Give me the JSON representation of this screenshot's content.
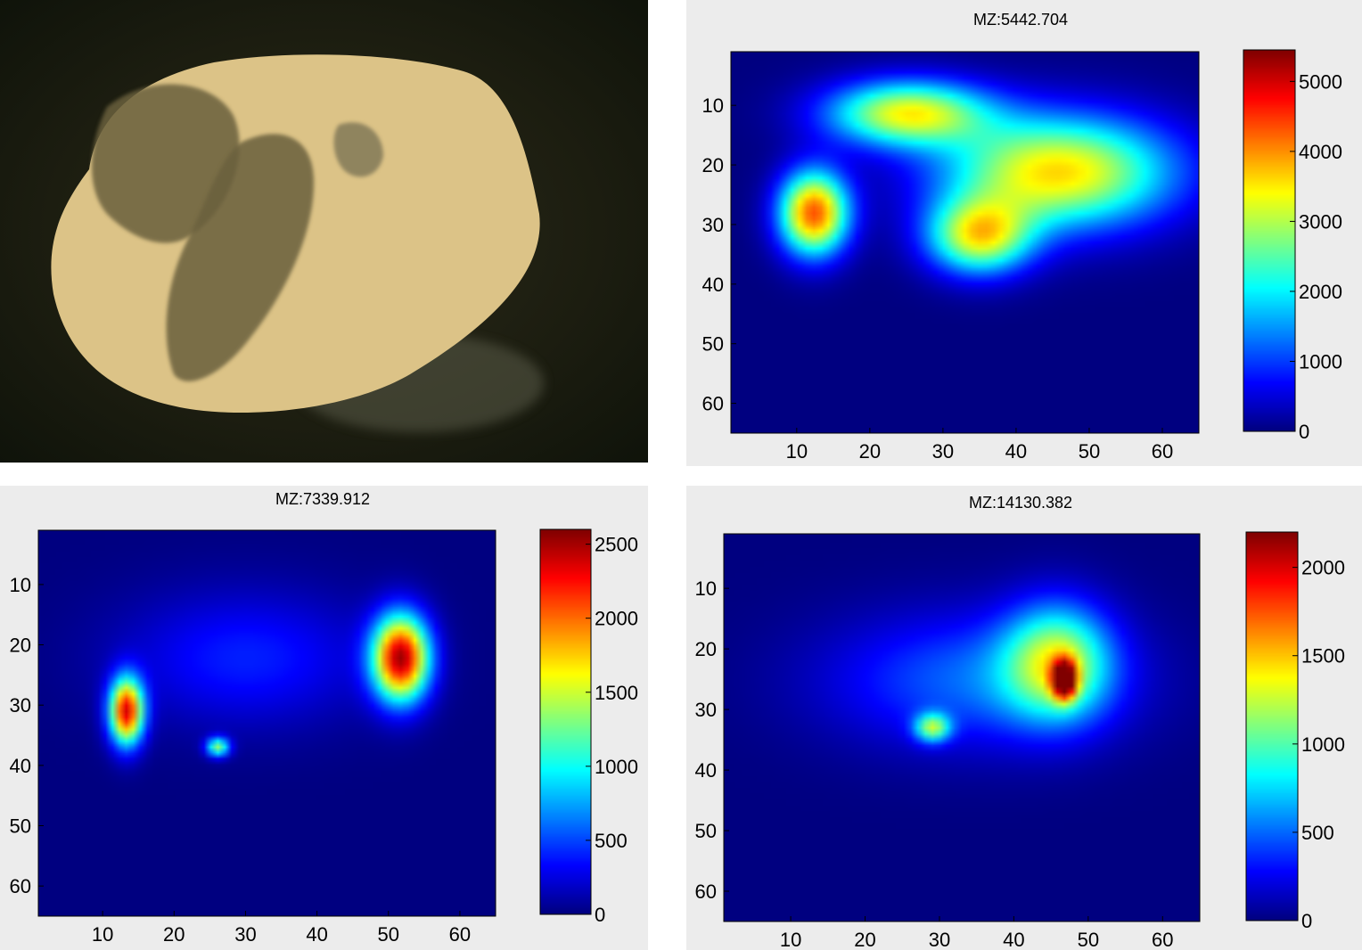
{
  "chart_data": [
    {
      "type": "heatmap",
      "title": "MZ:5442.704",
      "xticks": [
        "10",
        "20",
        "30",
        "40",
        "50",
        "60"
      ],
      "yticks": [
        "10",
        "20",
        "30",
        "40",
        "50",
        "60"
      ],
      "xlim": [
        1,
        65
      ],
      "ylim": [
        1,
        65
      ],
      "colorbar": {
        "ticks": [
          "0",
          "1000",
          "2000",
          "3000",
          "4000",
          "5000"
        ],
        "min": 0,
        "max": 5450
      },
      "colormap": "jet",
      "background_value": 0,
      "hotspots": [
        {
          "center": [
            46,
            21
          ],
          "radius": [
            20,
            12
          ],
          "peak": 3600
        },
        {
          "center": [
            25,
            11
          ],
          "radius": [
            14,
            7
          ],
          "peak": 3300
        },
        {
          "center": [
            12,
            28
          ],
          "radius": [
            6,
            9
          ],
          "peak": 4300
        },
        {
          "center": [
            35,
            32
          ],
          "radius": [
            9,
            8
          ],
          "peak": 3200
        }
      ]
    },
    {
      "type": "heatmap",
      "title": "MZ:7339.912",
      "xticks": [
        "10",
        "20",
        "30",
        "40",
        "50",
        "60"
      ],
      "yticks": [
        "10",
        "20",
        "30",
        "40",
        "50",
        "60"
      ],
      "xlim": [
        1,
        65
      ],
      "ylim": [
        1,
        65
      ],
      "colorbar": {
        "ticks": [
          "0",
          "500",
          "1000",
          "1500",
          "2000",
          "2500"
        ],
        "min": 0,
        "max": 2600
      },
      "colormap": "jet",
      "background_value": 0,
      "hotspots": [
        {
          "center": [
            13,
            31
          ],
          "radius": [
            3,
            7
          ],
          "peak": 2300
        },
        {
          "center": [
            52,
            22
          ],
          "radius": [
            5,
            9
          ],
          "peak": 2450
        },
        {
          "center": [
            30,
            22
          ],
          "radius": [
            22,
            14
          ],
          "peak": 400
        },
        {
          "center": [
            26,
            37
          ],
          "radius": [
            2,
            2
          ],
          "peak": 1300
        }
      ]
    },
    {
      "type": "heatmap",
      "title": "MZ:14130.382",
      "xticks": [
        "10",
        "20",
        "30",
        "40",
        "50",
        "60"
      ],
      "yticks": [
        "10",
        "20",
        "30",
        "40",
        "50",
        "60"
      ],
      "xlim": [
        1,
        65
      ],
      "ylim": [
        1,
        65
      ],
      "colorbar": {
        "ticks": [
          "0",
          "500",
          "1000",
          "1500",
          "2000"
        ],
        "min": 0,
        "max": 2200
      },
      "colormap": "jet",
      "background_value": 0,
      "hotspots": [
        {
          "center": [
            35,
            25
          ],
          "radius": [
            25,
            14
          ],
          "peak": 500
        },
        {
          "center": [
            46,
            22
          ],
          "radius": [
            9,
            12
          ],
          "peak": 1100
        },
        {
          "center": [
            47,
            25
          ],
          "radius": [
            2,
            4
          ],
          "peak": 1800
        },
        {
          "center": [
            29,
            33
          ],
          "radius": [
            3,
            3
          ],
          "peak": 1000
        }
      ]
    }
  ]
}
